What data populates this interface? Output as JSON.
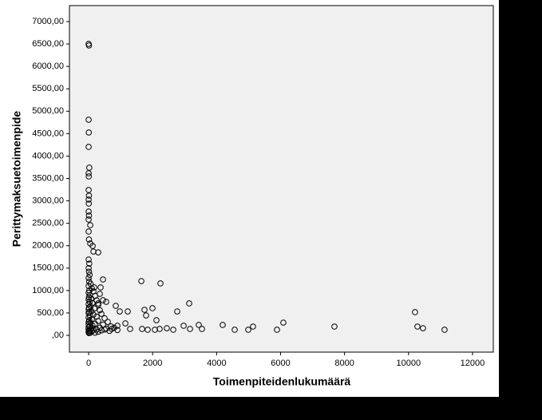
{
  "chart_data": {
    "type": "scatter",
    "x_label": "Toimenpiteidenlukumäärä",
    "y_label": "Perittymaksuetoimenpide",
    "color": "#000000",
    "xlim": [
      -600,
      12650
    ],
    "ylim": [
      -374,
      7356
    ],
    "xticks": [
      0,
      2000,
      4000,
      6000,
      8000,
      10000,
      12000
    ],
    "yticks": [
      {
        "value": 0,
        "label": ",00"
      },
      {
        "value": 500,
        "label": "500,00"
      },
      {
        "value": 1000,
        "label": "1000,00"
      },
      {
        "value": 1500,
        "label": "1500,00"
      },
      {
        "value": 2000,
        "label": "2000,00"
      },
      {
        "value": 2500,
        "label": "2500,00"
      },
      {
        "value": 3000,
        "label": "3000,00"
      },
      {
        "value": 3500,
        "label": "3500,00"
      },
      {
        "value": 4000,
        "label": "4000,00"
      },
      {
        "value": 4500,
        "label": "4500,00"
      },
      {
        "value": 5000,
        "label": "5000,00"
      },
      {
        "value": 5500,
        "label": "5500,00"
      },
      {
        "value": 6000,
        "label": "6000,00"
      },
      {
        "value": 6500,
        "label": "6500,00"
      },
      {
        "value": 7000,
        "label": "7000,00"
      }
    ],
    "x": [
      0,
      10,
      0,
      5,
      0,
      20,
      0,
      5,
      0,
      10,
      0,
      5,
      0,
      10,
      0,
      50,
      0,
      10,
      50,
      125,
      150,
      300,
      0,
      20,
      0,
      10,
      30,
      0,
      15,
      60,
      0,
      100,
      20,
      150,
      0,
      40,
      200,
      10,
      80,
      0,
      250,
      30,
      120,
      0,
      300,
      60,
      10,
      180,
      0,
      350,
      90,
      20,
      0,
      400,
      150,
      40,
      250,
      0,
      500,
      100,
      20,
      300,
      0,
      600,
      60,
      200,
      0,
      450,
      120,
      30,
      700,
      0,
      350,
      80,
      550,
      0,
      250,
      150,
      20,
      400,
      0,
      650,
      100,
      300,
      0,
      50,
      200,
      10,
      500,
      800,
      900,
      1647,
      2245,
      449,
      3143,
      1746,
      1996,
      2769,
      1796,
      3443,
      4191,
      6087,
      7683,
      10203,
      10278,
      10452,
      11126,
      5888,
      5139,
      4990,
      4566,
      3542,
      3168,
      2969,
      2645,
      2445,
      2120,
      2071,
      1846,
      1671,
      1148,
      898,
      724,
      973,
      848,
      549,
      449,
      299,
      349,
      175,
      374,
      1297,
      1222,
      2220
    ],
    "values": [
      6502,
      6467,
      4810,
      4525,
      4204,
      3741,
      3616,
      3545,
      3242,
      3117,
      3028,
      2939,
      2761,
      2672,
      2583,
      2458,
      2316,
      2138,
      2049,
      1995,
      1870,
      1852,
      1692,
      1600,
      1500,
      1420,
      1350,
      1280,
      1200,
      1150,
      1100,
      1050,
      1000,
      980,
      950,
      900,
      880,
      850,
      820,
      800,
      780,
      750,
      720,
      700,
      680,
      650,
      620,
      600,
      580,
      560,
      540,
      520,
      500,
      480,
      460,
      440,
      420,
      400,
      380,
      360,
      340,
      320,
      300,
      300,
      280,
      260,
      250,
      240,
      220,
      200,
      200,
      180,
      170,
      160,
      150,
      140,
      130,
      120,
      110,
      110,
      100,
      100,
      90,
      80,
      70,
      60,
      60,
      50,
      130,
      170,
      120,
      1211,
      1158,
      1247,
      713,
      570,
      606,
      534,
      445,
      232,
      232,
      285,
      196,
      517,
      196,
      160,
      125,
      125,
      196,
      125,
      125,
      143,
      143,
      214,
      125,
      160,
      338,
      125,
      125,
      143,
      267,
      214,
      143,
      534,
      659,
      748,
      784,
      713,
      926,
      1069,
      1069,
      143,
      534,
      143
    ]
  }
}
